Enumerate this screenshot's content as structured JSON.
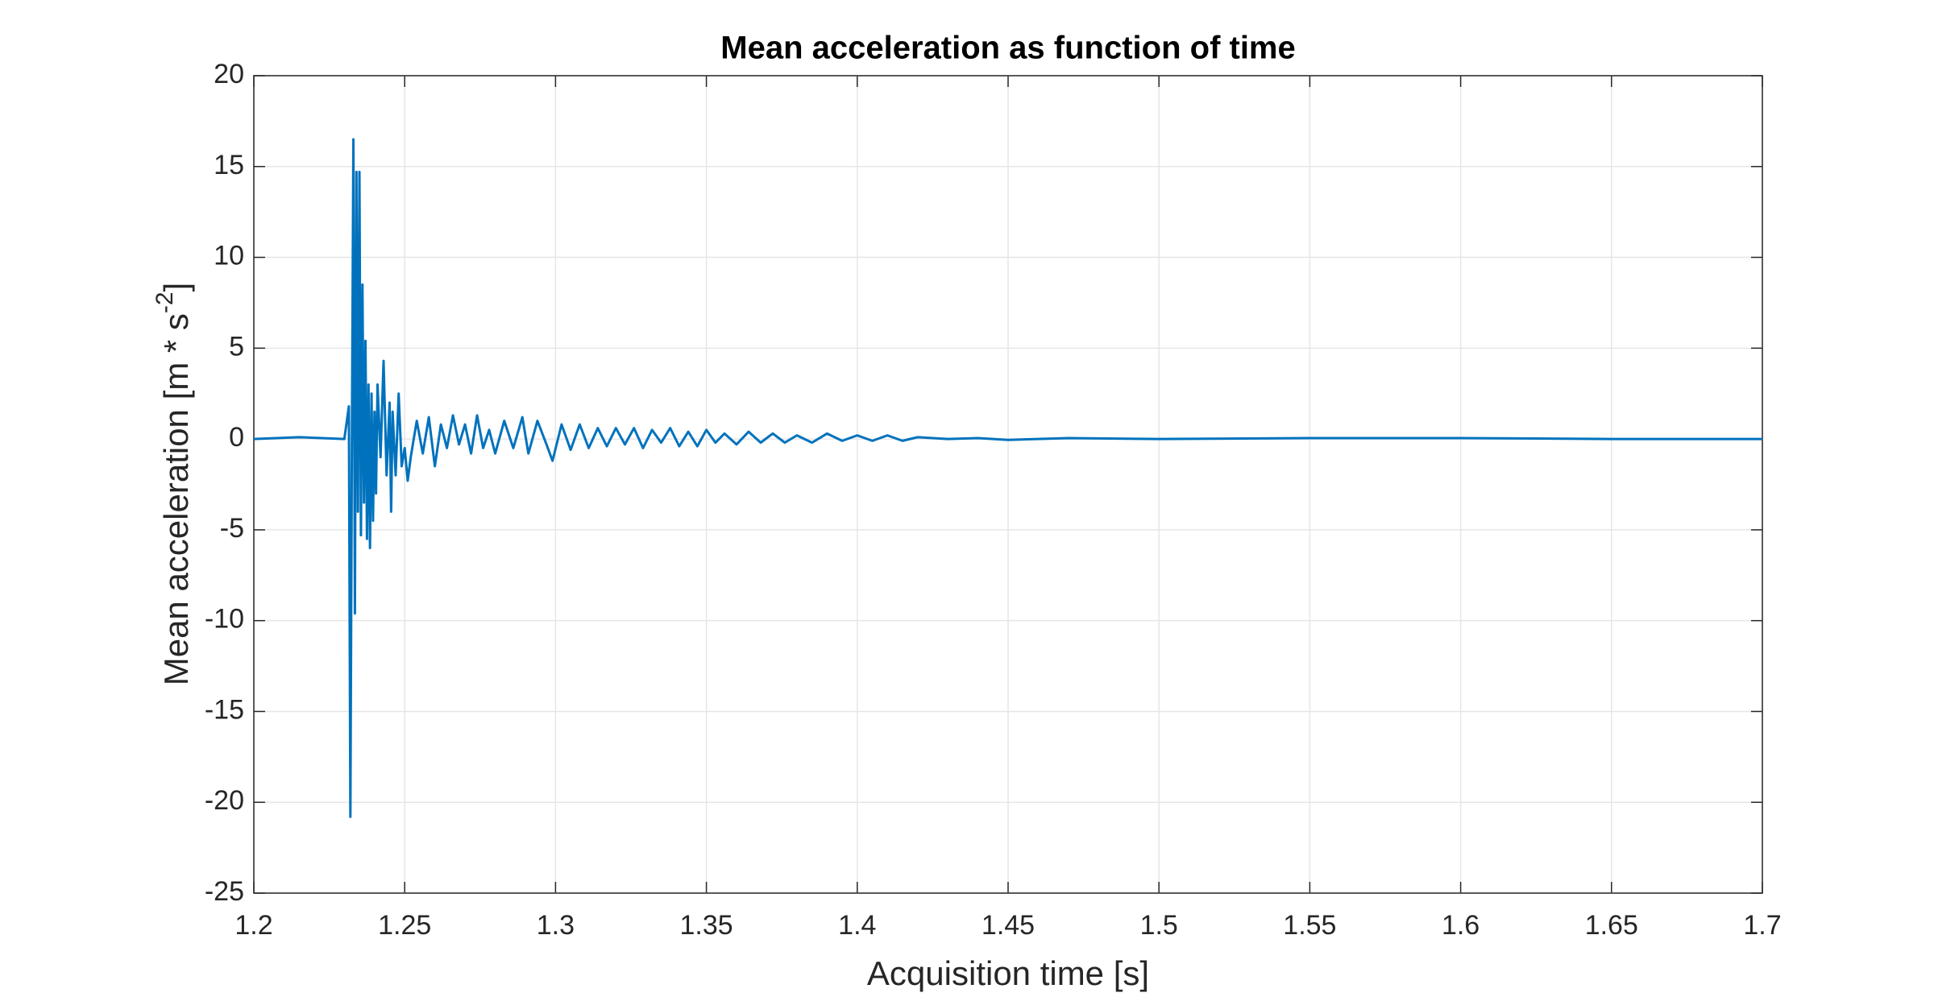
{
  "chart_data": {
    "type": "line",
    "title": "Mean acceleration as function of time",
    "xlabel": "Acquisition time [s]",
    "ylabel": [
      "Mean acceleration [m * s",
      "-2",
      "]"
    ],
    "xlim": [
      1.2,
      1.7
    ],
    "xticks": [
      1.2,
      1.25,
      1.3,
      1.35,
      1.4,
      1.45,
      1.5,
      1.55,
      1.6,
      1.65,
      1.7
    ],
    "ylim": [
      -25,
      20
    ],
    "yticks": [
      -25,
      -20,
      -15,
      -10,
      -5,
      0,
      5,
      10,
      15,
      20
    ],
    "grid": true,
    "series": [
      {
        "color": "#0072bd",
        "x": [
          1.2,
          1.215,
          1.23,
          1.2315,
          1.232,
          1.2325,
          1.233,
          1.2335,
          1.234,
          1.2345,
          1.235,
          1.2355,
          1.236,
          1.2365,
          1.237,
          1.2375,
          1.238,
          1.2385,
          1.239,
          1.2395,
          1.24,
          1.2405,
          1.241,
          1.242,
          1.243,
          1.244,
          1.245,
          1.2455,
          1.246,
          1.247,
          1.248,
          1.249,
          1.25,
          1.251,
          1.252,
          1.254,
          1.256,
          1.258,
          1.26,
          1.262,
          1.264,
          1.266,
          1.268,
          1.27,
          1.272,
          1.274,
          1.276,
          1.278,
          1.28,
          1.283,
          1.286,
          1.289,
          1.291,
          1.294,
          1.297,
          1.299,
          1.302,
          1.305,
          1.308,
          1.311,
          1.314,
          1.317,
          1.32,
          1.323,
          1.326,
          1.329,
          1.332,
          1.335,
          1.338,
          1.341,
          1.344,
          1.347,
          1.35,
          1.353,
          1.356,
          1.36,
          1.364,
          1.368,
          1.372,
          1.376,
          1.38,
          1.385,
          1.39,
          1.395,
          1.4,
          1.405,
          1.41,
          1.415,
          1.42,
          1.43,
          1.44,
          1.45,
          1.47,
          1.5,
          1.55,
          1.6,
          1.65,
          1.7
        ],
        "values": [
          0,
          0.1,
          0,
          1.8,
          -20.8,
          0,
          16.5,
          -9.6,
          14.7,
          -4,
          14.7,
          -5.3,
          8.5,
          -3.5,
          5.4,
          -5.5,
          3,
          -6,
          2.5,
          -4.5,
          1.5,
          -3,
          3,
          -1,
          4.3,
          -2,
          2,
          -4,
          1.5,
          -2,
          2.5,
          -1.5,
          -0.5,
          -2.3,
          -1,
          1,
          -0.8,
          1.2,
          -1.5,
          0.8,
          -0.5,
          1.3,
          -0.3,
          0.8,
          -0.8,
          1.3,
          -0.5,
          0.5,
          -0.8,
          1,
          -0.5,
          1.2,
          -0.8,
          1,
          -0.3,
          -1.2,
          0.8,
          -0.6,
          0.8,
          -0.5,
          0.6,
          -0.4,
          0.6,
          -0.3,
          0.6,
          -0.5,
          0.5,
          -0.2,
          0.6,
          -0.4,
          0.4,
          -0.4,
          0.5,
          -0.2,
          0.3,
          -0.3,
          0.4,
          -0.2,
          0.3,
          -0.2,
          0.2,
          -0.2,
          0.3,
          -0.1,
          0.2,
          -0.1,
          0.2,
          -0.1,
          0.1,
          0,
          0.05,
          -0.05,
          0.05,
          0,
          0.05,
          0.05,
          0,
          0
        ]
      }
    ]
  }
}
